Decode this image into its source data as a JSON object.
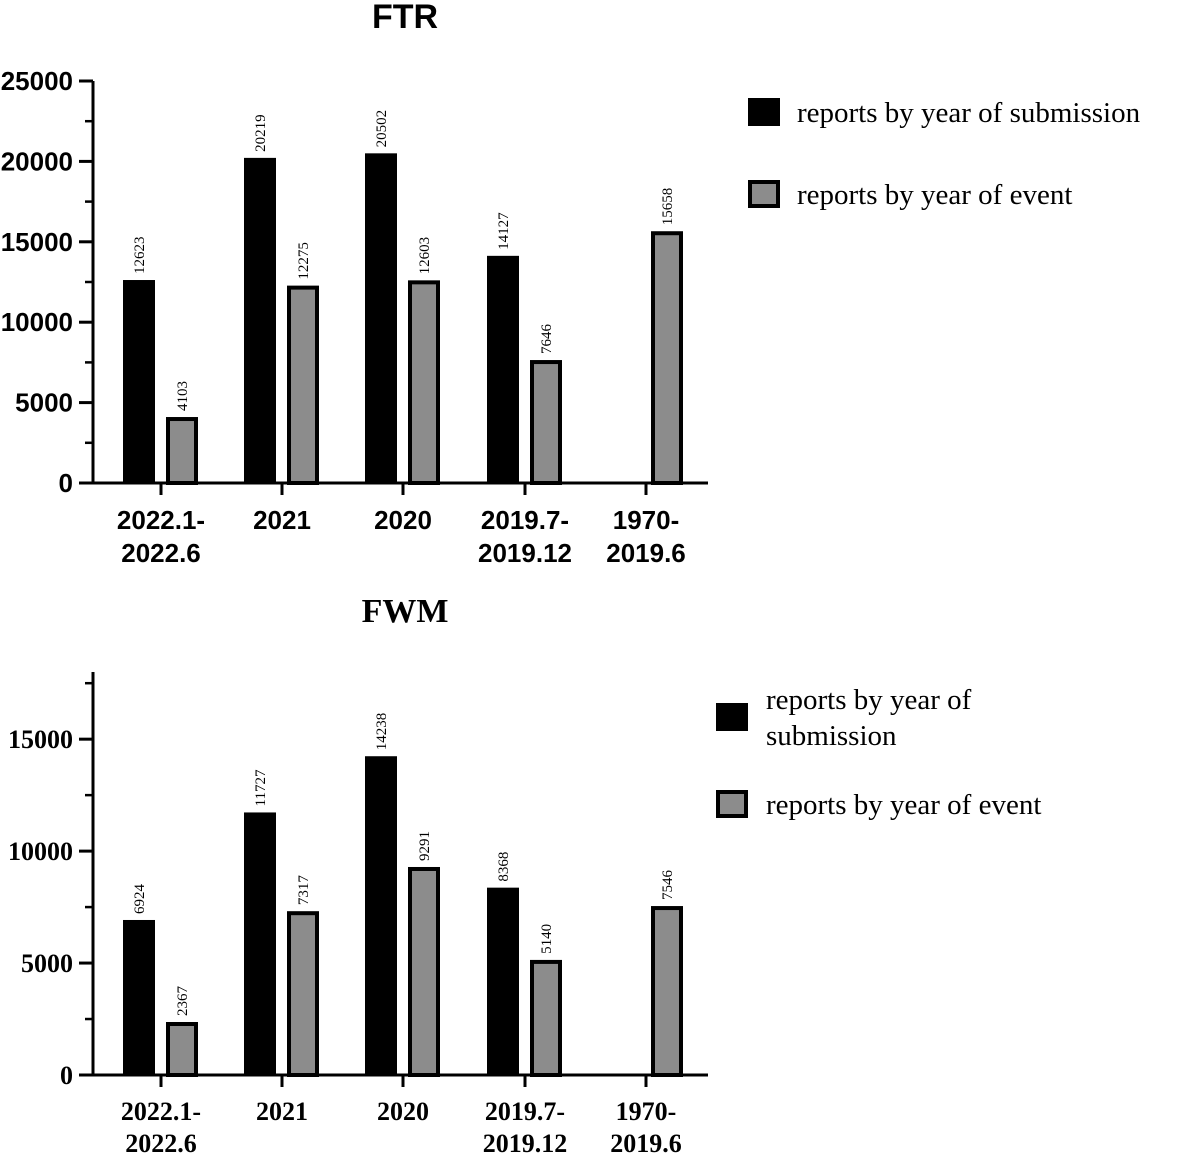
{
  "chart_data": [
    {
      "type": "bar",
      "title": "FTR",
      "xlabel": "",
      "ylabel": "",
      "ylim": [
        0,
        25000
      ],
      "yticks": [
        0,
        5000,
        10000,
        15000,
        20000,
        25000
      ],
      "categories": [
        [
          "2022.1-",
          "2022.6"
        ],
        [
          "2021"
        ],
        [
          "2020"
        ],
        [
          "2019.7-",
          "2019.12"
        ],
        [
          "1970-",
          "2019.6"
        ]
      ],
      "series": [
        {
          "name": "reports by year of submission",
          "color": "#000000",
          "values": [
            12623,
            20219,
            20502,
            14127,
            null
          ]
        },
        {
          "name": "reports by year of event",
          "color": "#8c8c8c",
          "values": [
            4103,
            12275,
            12603,
            7646,
            15658
          ]
        }
      ],
      "legend": "top-right",
      "grid": false
    },
    {
      "type": "bar",
      "title": "FWM",
      "xlabel": "",
      "ylabel": "",
      "ylim": [
        0,
        18000
      ],
      "yticks": [
        0,
        5000,
        10000,
        15000
      ],
      "categories": [
        [
          "2022.1-",
          "2022.6"
        ],
        [
          "2021"
        ],
        [
          "2020"
        ],
        [
          "2019.7-",
          "2019.12"
        ],
        [
          "1970-",
          "2019.6"
        ]
      ],
      "series": [
        {
          "name": "reports by year of submission",
          "legend_lines": [
            "reports by year of",
            "submission"
          ],
          "color": "#000000",
          "values": [
            6924,
            11727,
            14238,
            8368,
            null
          ]
        },
        {
          "name": "reports by year of event",
          "color": "#8c8c8c",
          "values": [
            2367,
            7317,
            9291,
            5140,
            7546
          ]
        }
      ],
      "legend": "top-right",
      "grid": false
    }
  ]
}
